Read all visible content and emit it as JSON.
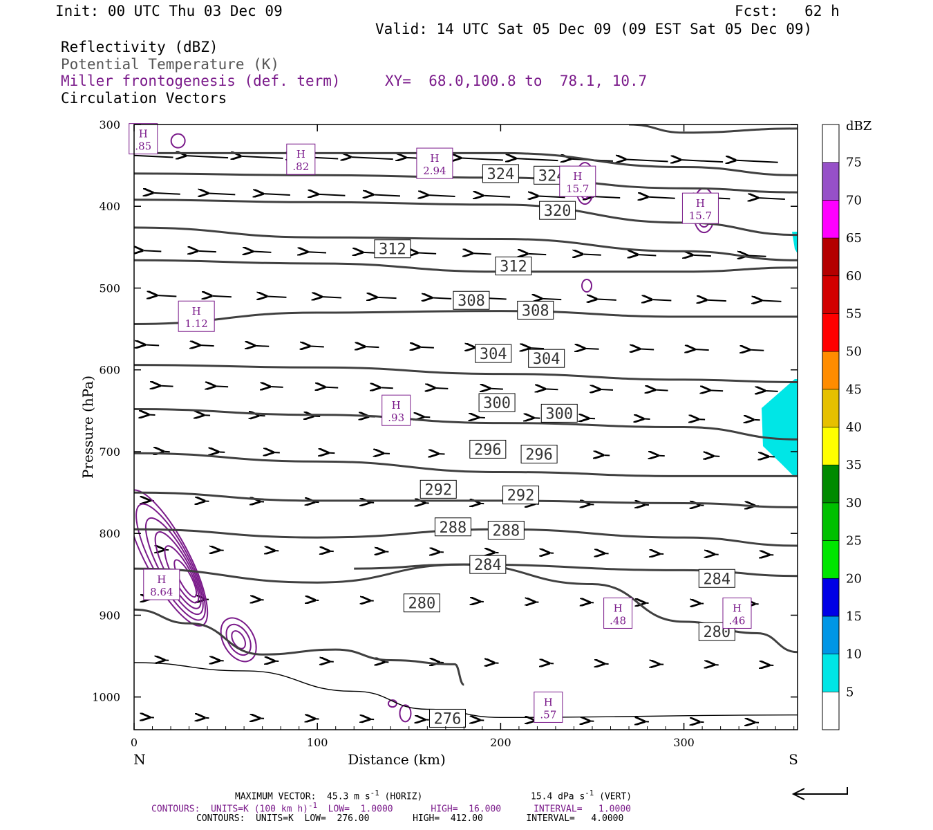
{
  "header": {
    "init": "Init: 00 UTC Thu 03 Dec 09",
    "fcst": "Fcst:   62 h",
    "valid": "Valid: 14 UTC Sat 05 Dec 09 (09 EST Sat 05 Dec 09)",
    "line1": "Reflectivity (dBZ)",
    "line2": "Potential Temperature (K)",
    "line3": "Miller frontogenesis (def. term)",
    "xy": "XY=  68.0,100.8 to  78.1, 10.7",
    "line4": "Circulation Vectors"
  },
  "footer": {
    "max_vector": "MAXIMUM VECTOR:  45.3 m s",
    "horiz": " (HORIZ)",
    "vert_val": "15.4 dPa s",
    "vert_unit": " (VERT)",
    "c1_a": "CONTOURS:  UNITS=K (100 km h)",
    "c1_b": "  LOW=  1.0000       HIGH=  16.000      INTERVAL=   1.0000",
    "c2": "CONTOURS:  UNITS=K  LOW=  276.00        HIGH=  412.00        INTERVAL=   4.0000",
    "exp": "-1"
  },
  "colors": {
    "theta": "#404040",
    "fronto": "#7a1a8a",
    "refl": "#00e6e6"
  },
  "chart_data": {
    "type": "line",
    "xlabel": "Distance (km)",
    "ylabel": "Pressure (hPa)",
    "xlim": [
      0,
      362
    ],
    "ylim": [
      1040,
      300
    ],
    "x_ticks": [
      0,
      100,
      200,
      300
    ],
    "y_ticks": [
      300,
      400,
      500,
      600,
      700,
      800,
      900,
      1000
    ],
    "x_end_labels": {
      "left": "N",
      "right": "S"
    },
    "theta_contours": [
      {
        "theta": 276,
        "pts": [
          [
            0,
            958
          ],
          [
            60,
            968
          ],
          [
            120,
            993
          ],
          [
            160,
            1015
          ],
          [
            200,
            1025
          ],
          [
            362,
            1022
          ]
        ]
      },
      {
        "theta": 280,
        "pts": [
          [
            0,
            893
          ],
          [
            30,
            910
          ],
          [
            70,
            948
          ],
          [
            110,
            942
          ],
          [
            140,
            955
          ],
          [
            175,
            960
          ],
          [
            180,
            985
          ]
        ]
      },
      {
        "theta": 280,
        "pts": [
          [
            120,
            843
          ],
          [
            180,
            838
          ],
          [
            250,
            862
          ],
          [
            300,
            908
          ],
          [
            340,
            922
          ],
          [
            362,
            945
          ]
        ]
      },
      {
        "theta": 284,
        "pts": [
          [
            0,
            843
          ],
          [
            100,
            860
          ],
          [
            180,
            838
          ],
          [
            300,
            845
          ],
          [
            362,
            852
          ]
        ]
      },
      {
        "theta": 288,
        "pts": [
          [
            0,
            795
          ],
          [
            100,
            805
          ],
          [
            200,
            795
          ],
          [
            300,
            805
          ],
          [
            362,
            815
          ]
        ]
      },
      {
        "theta": 292,
        "pts": [
          [
            0,
            750
          ],
          [
            100,
            760
          ],
          [
            200,
            760
          ],
          [
            300,
            763
          ],
          [
            362,
            768
          ]
        ]
      },
      {
        "theta": 296,
        "pts": [
          [
            0,
            702
          ],
          [
            100,
            712
          ],
          [
            200,
            725
          ],
          [
            300,
            730
          ],
          [
            362,
            730
          ]
        ]
      },
      {
        "theta": 300,
        "pts": [
          [
            0,
            648
          ],
          [
            100,
            655
          ],
          [
            200,
            665
          ],
          [
            300,
            670
          ],
          [
            362,
            685
          ]
        ]
      },
      {
        "theta": 304,
        "pts": [
          [
            0,
            594
          ],
          [
            100,
            597
          ],
          [
            200,
            605
          ],
          [
            300,
            612
          ],
          [
            362,
            615
          ]
        ]
      },
      {
        "theta": 308,
        "pts": [
          [
            0,
            544
          ],
          [
            100,
            530
          ],
          [
            200,
            528
          ],
          [
            300,
            535
          ],
          [
            362,
            535
          ]
        ]
      },
      {
        "theta": 312,
        "pts": [
          [
            0,
            466
          ],
          [
            100,
            470
          ],
          [
            200,
            480
          ],
          [
            300,
            480
          ],
          [
            362,
            475
          ]
        ]
      },
      {
        "theta": 316,
        "pts": [
          [
            0,
            426
          ],
          [
            100,
            438
          ],
          [
            200,
            440
          ],
          [
            300,
            455
          ],
          [
            362,
            466
          ]
        ]
      },
      {
        "theta": 320,
        "pts": [
          [
            0,
            392
          ],
          [
            100,
            395
          ],
          [
            200,
            398
          ],
          [
            300,
            420
          ],
          [
            362,
            435
          ]
        ]
      },
      {
        "theta": 324,
        "pts": [
          [
            0,
            360
          ],
          [
            100,
            362
          ],
          [
            200,
            365
          ],
          [
            300,
            378
          ],
          [
            362,
            383
          ]
        ]
      },
      {
        "theta": 328,
        "pts": [
          [
            0,
            335
          ],
          [
            100,
            335
          ],
          [
            200,
            335
          ],
          [
            300,
            352
          ],
          [
            362,
            362
          ]
        ]
      },
      {
        "theta": 332,
        "pts": [
          [
            270,
            300
          ],
          [
            300,
            310
          ],
          [
            362,
            305
          ]
        ]
      }
    ],
    "theta_labels": [
      {
        "text": "324",
        "x": 200,
        "p": 360
      },
      {
        "text": "324",
        "x": 228,
        "p": 362
      },
      {
        "text": "320",
        "x": 231,
        "p": 405
      },
      {
        "text": "312",
        "x": 141,
        "p": 452
      },
      {
        "text": "312",
        "x": 207,
        "p": 473
      },
      {
        "text": "308",
        "x": 184,
        "p": 515
      },
      {
        "text": "308",
        "x": 219,
        "p": 527
      },
      {
        "text": "304",
        "x": 196,
        "p": 580
      },
      {
        "text": "304",
        "x": 225,
        "p": 586
      },
      {
        "text": "300",
        "x": 198,
        "p": 640
      },
      {
        "text": "300",
        "x": 232,
        "p": 653
      },
      {
        "text": "296",
        "x": 193,
        "p": 697
      },
      {
        "text": "296",
        "x": 221,
        "p": 703
      },
      {
        "text": "292",
        "x": 166,
        "p": 746
      },
      {
        "text": "292",
        "x": 211,
        "p": 753
      },
      {
        "text": "288",
        "x": 174,
        "p": 792
      },
      {
        "text": "288",
        "x": 203,
        "p": 796
      },
      {
        "text": "284",
        "x": 193,
        "p": 838
      },
      {
        "text": "284",
        "x": 318,
        "p": 855
      },
      {
        "text": "280",
        "x": 157,
        "p": 885
      },
      {
        "text": "280",
        "x": 318,
        "p": 920
      },
      {
        "text": "276",
        "x": 171,
        "p": 1026
      }
    ],
    "fronto_maxima": [
      {
        "label": "H",
        "value": ".85",
        "x": 5,
        "p": 320
      },
      {
        "label": "H",
        "value": ".82",
        "x": 91,
        "p": 345
      },
      {
        "label": "H",
        "value": "2.94",
        "x": 164,
        "p": 350
      },
      {
        "label": "H",
        "value": "15.7",
        "x": 242,
        "p": 372
      },
      {
        "label": "H",
        "value": "15.7",
        "x": 309,
        "p": 405
      },
      {
        "label": "H",
        "value": "1.12",
        "x": 34,
        "p": 537
      },
      {
        "label": "H",
        "value": ".93",
        "x": 143,
        "p": 652
      },
      {
        "label": "H",
        "value": "8.64",
        "x": 15,
        "p": 865
      },
      {
        "label": "H",
        "value": ".48",
        "x": 264,
        "p": 900
      },
      {
        "label": "H",
        "value": ".46",
        "x": 329,
        "p": 900
      },
      {
        "label": "H",
        "value": ".57",
        "x": 226,
        "p": 1015
      }
    ],
    "colorbar": {
      "title": "dBZ",
      "levels": [
        5,
        10,
        15,
        20,
        25,
        30,
        35,
        40,
        45,
        50,
        55,
        60,
        65,
        70,
        75
      ],
      "colors": [
        "#ffffff",
        "#00e6e6",
        "#0096e6",
        "#0000e6",
        "#00e600",
        "#00c000",
        "#008a00",
        "#ffff00",
        "#e6c000",
        "#ff8c00",
        "#ff0000",
        "#d20000",
        "#b40000",
        "#ff00ff",
        "#9650c8",
        "#ffffff"
      ]
    }
  }
}
